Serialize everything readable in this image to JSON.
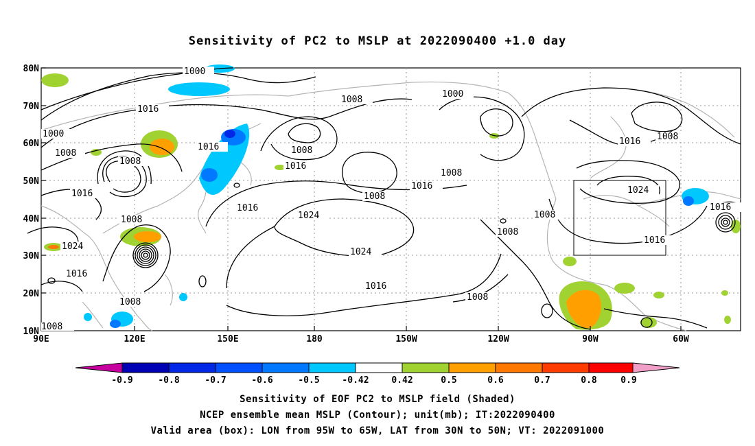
{
  "title": "Sensitivity of PC2 to MSLP at 2022090400 +1.0 day",
  "y_axis_labels": [
    "80N",
    "70N",
    "60N",
    "50N",
    "40N",
    "30N",
    "20N",
    "10N"
  ],
  "x_axis_labels": [
    "90E",
    "120E",
    "150E",
    "180",
    "150W",
    "120W",
    "90W",
    "60W"
  ],
  "contour_labels": [
    "1000",
    "1008",
    "1016",
    "1024"
  ],
  "colorbar": {
    "labels": [
      "-0.9",
      "-0.8",
      "-0.7",
      "-0.6",
      "-0.5",
      "-0.42",
      "0.42",
      "0.5",
      "0.6",
      "0.7",
      "0.8",
      "0.9"
    ],
    "colors": [
      "#c800a0",
      "#0000b4",
      "#0028e6",
      "#0050ff",
      "#0078ff",
      "#00c8ff",
      "#ffffff",
      "#a0d232",
      "#ffa000",
      "#ff7800",
      "#ff3c00",
      "#ff0000",
      "#f0a0c8"
    ]
  },
  "valid_box": {
    "lon_range": "95W to 65W",
    "lat_range": "30N to 50N"
  },
  "captions": [
    "Sensitivity of EOF PC2 to MSLP field (Shaded)",
    "NCEP ensemble mean MSLP (Contour); unit(mb); IT:2022090400",
    "Valid area (box): LON from 95W to 65W, LAT from 30N to 50N; VT: 2022091000"
  ]
}
